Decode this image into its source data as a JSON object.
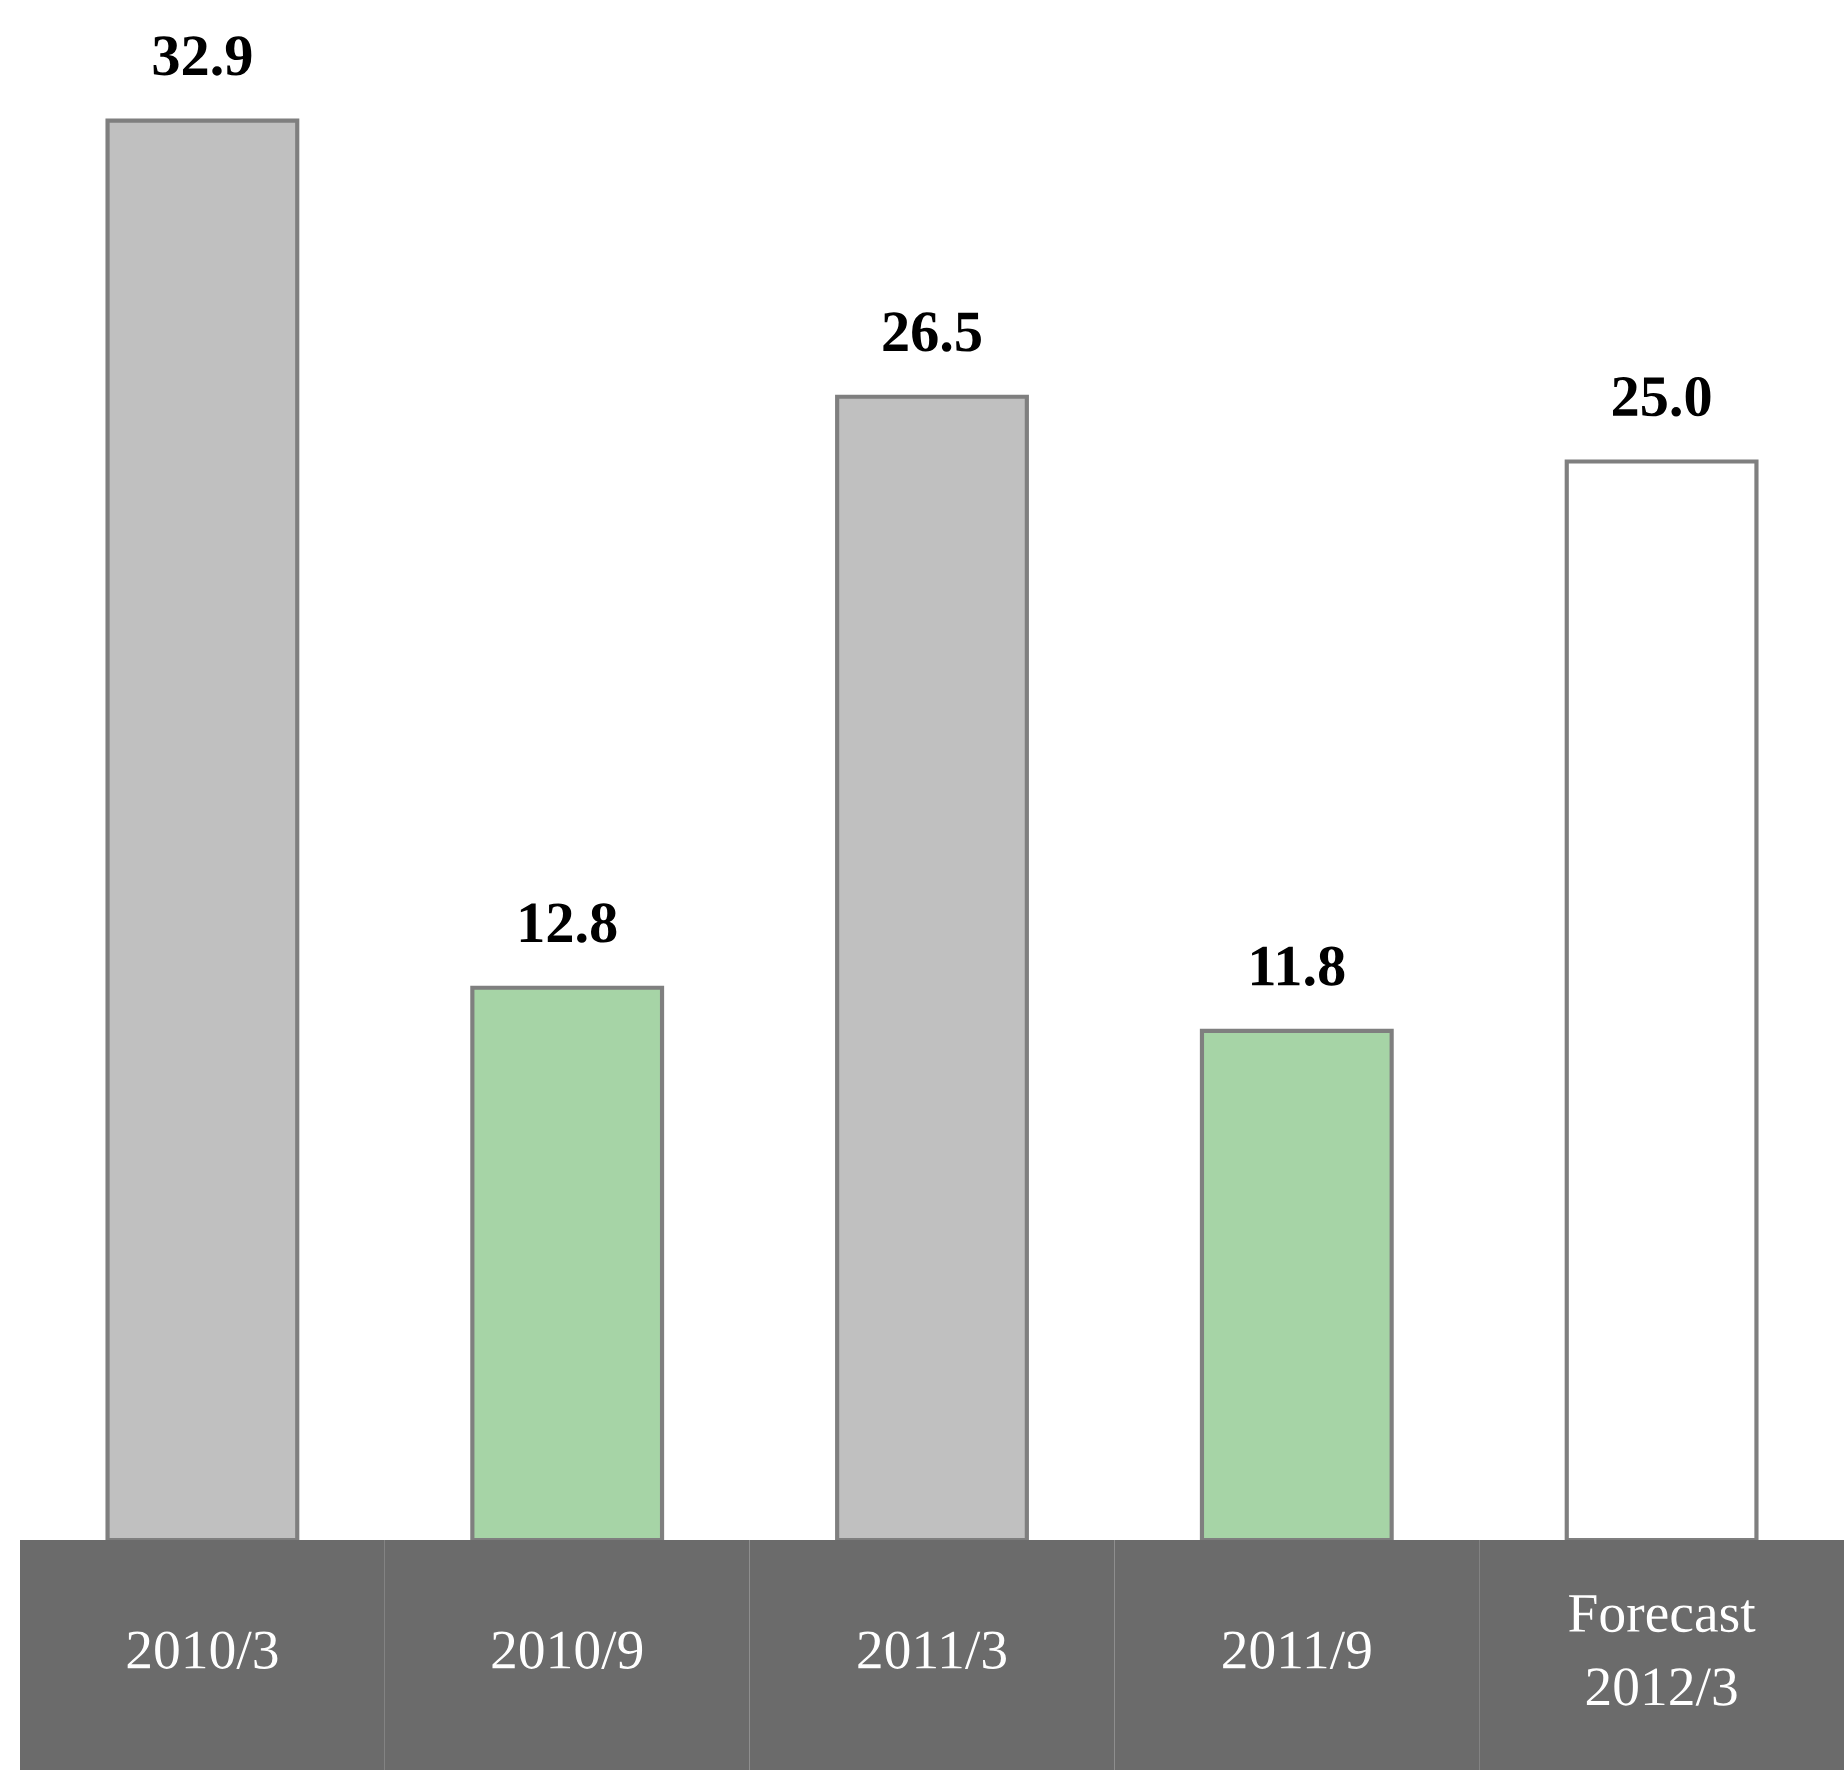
{
  "chart_data": {
    "type": "bar",
    "categories": [
      "2010/3",
      "2010/9",
      "2011/3",
      "2011/9",
      "Forecast\n2012/3"
    ],
    "values": [
      32.9,
      12.8,
      26.5,
      11.8,
      25.0
    ],
    "colors": [
      "#c0c0c0",
      "#a6d4a6",
      "#c0c0c0",
      "#a6d4a6",
      "#ffffff"
    ],
    "value_labels": [
      "32.9",
      "12.8",
      "26.5",
      "11.8",
      "25.0"
    ]
  }
}
